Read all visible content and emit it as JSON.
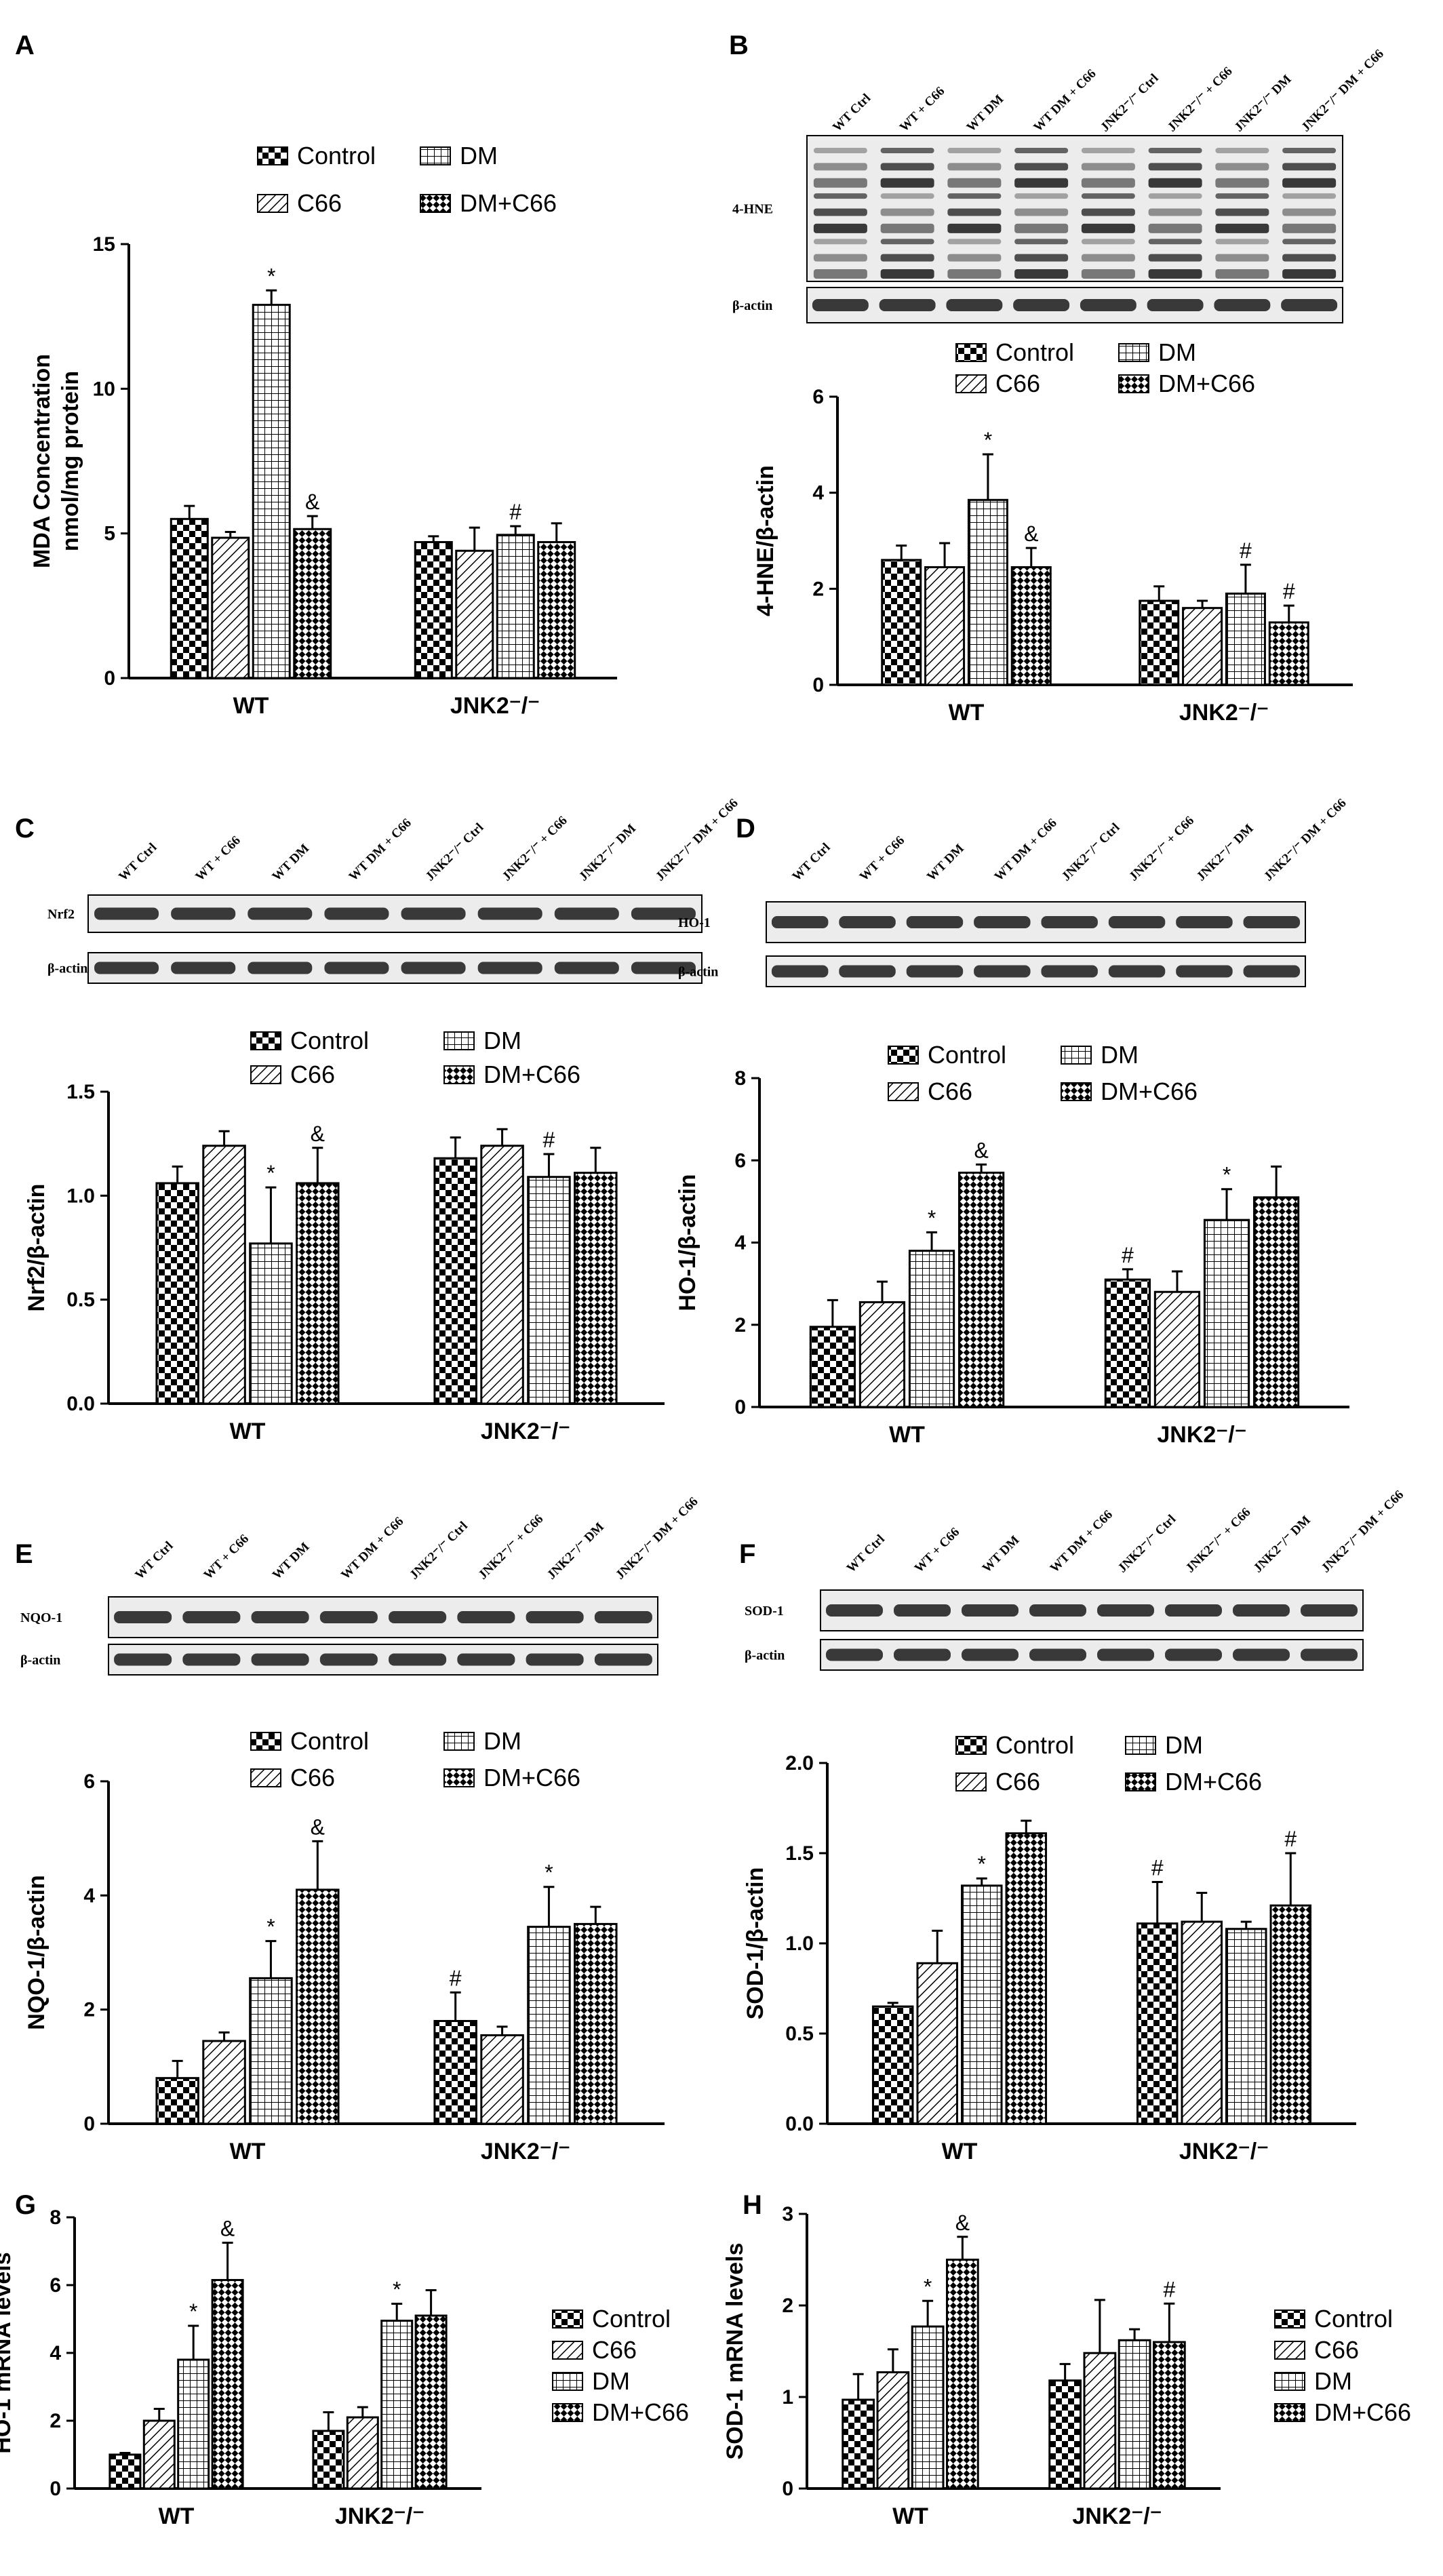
{
  "legend_labels": [
    "Control",
    "C66",
    "DM",
    "DM+C66"
  ],
  "groups": [
    "WT",
    "JNK2⁻/⁻"
  ],
  "lane_labels": [
    "WT Ctrl",
    "WT + C66",
    "WT DM",
    "WT DM + C66",
    "JNK2⁻/⁻ Ctrl",
    "JNK2⁻/⁻ + C66",
    "JNK2⁻/⁻ DM",
    "JNK2⁻/⁻ DM + C66"
  ],
  "colors": {
    "ink": "#000000",
    "bar_fill": "#ffffff",
    "blot_bg": "#ececec",
    "band": "#1a1a1a"
  },
  "patterns": [
    "checker",
    "diagonal",
    "grid",
    "crosshatch"
  ],
  "blots": [
    {
      "panel": "B",
      "rows": [
        "4-HNE",
        "β-actin"
      ]
    },
    {
      "panel": "C",
      "rows": [
        "Nrf2",
        "β-actin"
      ]
    },
    {
      "panel": "D",
      "rows": [
        "HO-1",
        "β-actin"
      ]
    },
    {
      "panel": "E",
      "rows": [
        "NQO-1",
        "β-actin"
      ]
    },
    {
      "panel": "F",
      "rows": [
        "SOD-1",
        "β-actin"
      ]
    }
  ],
  "chart_data": [
    {
      "panel": "A",
      "type": "bar",
      "ylabel": [
        "MDA Concentration",
        "nmol/mg protein"
      ],
      "ylim": [
        0,
        15
      ],
      "yticks": [
        "0",
        "5",
        "10",
        "15"
      ],
      "categories": [
        "WT",
        "JNK2⁻/⁻"
      ],
      "series": [
        {
          "name": "Control",
          "values": [
            5.5,
            4.7
          ],
          "errors": [
            0.45,
            0.2
          ]
        },
        {
          "name": "C66",
          "values": [
            4.85,
            4.4
          ],
          "errors": [
            0.2,
            0.8
          ]
        },
        {
          "name": "DM",
          "values": [
            12.9,
            4.95
          ],
          "errors": [
            0.5,
            0.3
          ]
        },
        {
          "name": "DM+C66",
          "values": [
            5.15,
            4.7
          ],
          "errors": [
            0.45,
            0.65
          ]
        }
      ],
      "marks": [
        [
          "",
          "",
          "*",
          "&"
        ],
        [
          "",
          "",
          "#",
          ""
        ]
      ],
      "legend": "top"
    },
    {
      "panel": "B",
      "type": "bar",
      "ylabel": [
        "4-HNE/β-actin"
      ],
      "ylim": [
        0,
        6
      ],
      "yticks": [
        "0",
        "2",
        "4",
        "6"
      ],
      "categories": [
        "WT",
        "JNK2⁻/⁻"
      ],
      "series": [
        {
          "name": "Control",
          "values": [
            2.6,
            1.75
          ],
          "errors": [
            0.3,
            0.3
          ]
        },
        {
          "name": "C66",
          "values": [
            2.45,
            1.6
          ],
          "errors": [
            0.5,
            0.15
          ]
        },
        {
          "name": "DM",
          "values": [
            3.85,
            1.9
          ],
          "errors": [
            0.95,
            0.6
          ]
        },
        {
          "name": "DM+C66",
          "values": [
            2.45,
            1.3
          ],
          "errors": [
            0.4,
            0.35
          ]
        }
      ],
      "marks": [
        [
          "",
          "",
          "*",
          "&"
        ],
        [
          "",
          "",
          "#",
          "#"
        ]
      ],
      "legend": "top"
    },
    {
      "panel": "C",
      "type": "bar",
      "ylabel": [
        "Nrf2/β-actin"
      ],
      "ylim": [
        0,
        1.5
      ],
      "yticks": [
        "0.0",
        "0.5",
        "1.0",
        "1.5"
      ],
      "categories": [
        "WT",
        "JNK2⁻/⁻"
      ],
      "series": [
        {
          "name": "Control",
          "values": [
            1.06,
            1.18
          ],
          "errors": [
            0.08,
            0.1
          ]
        },
        {
          "name": "C66",
          "values": [
            1.24,
            1.24
          ],
          "errors": [
            0.07,
            0.08
          ]
        },
        {
          "name": "DM",
          "values": [
            0.77,
            1.09
          ],
          "errors": [
            0.27,
            0.11
          ]
        },
        {
          "name": "DM+C66",
          "values": [
            1.06,
            1.11
          ],
          "errors": [
            0.17,
            0.12
          ]
        }
      ],
      "marks": [
        [
          "",
          "",
          "*",
          "&"
        ],
        [
          "",
          "",
          "#",
          ""
        ]
      ],
      "legend": "top"
    },
    {
      "panel": "D",
      "type": "bar",
      "ylabel": [
        "HO-1/β-actin"
      ],
      "ylim": [
        0,
        8
      ],
      "yticks": [
        "0",
        "2",
        "4",
        "6",
        "8"
      ],
      "categories": [
        "WT",
        "JNK2⁻/⁻"
      ],
      "series": [
        {
          "name": "Control",
          "values": [
            1.95,
            3.1
          ],
          "errors": [
            0.65,
            0.25
          ]
        },
        {
          "name": "C66",
          "values": [
            2.55,
            2.8
          ],
          "errors": [
            0.5,
            0.5
          ]
        },
        {
          "name": "DM",
          "values": [
            3.8,
            4.55
          ],
          "errors": [
            0.45,
            0.75
          ]
        },
        {
          "name": "DM+C66",
          "values": [
            5.7,
            5.1
          ],
          "errors": [
            0.2,
            0.75
          ]
        }
      ],
      "marks": [
        [
          "",
          "",
          "*",
          "&"
        ],
        [
          "#",
          "",
          "*",
          ""
        ]
      ],
      "legend": "top"
    },
    {
      "panel": "E",
      "type": "bar",
      "ylabel": [
        "NQO-1/β-actin"
      ],
      "ylim": [
        0,
        6
      ],
      "yticks": [
        "0",
        "2",
        "4",
        "6"
      ],
      "categories": [
        "WT",
        "JNK2⁻/⁻"
      ],
      "series": [
        {
          "name": "Control",
          "values": [
            0.8,
            1.8
          ],
          "errors": [
            0.3,
            0.5
          ]
        },
        {
          "name": "C66",
          "values": [
            1.45,
            1.55
          ],
          "errors": [
            0.15,
            0.15
          ]
        },
        {
          "name": "DM",
          "values": [
            2.55,
            3.45
          ],
          "errors": [
            0.65,
            0.7
          ]
        },
        {
          "name": "DM+C66",
          "values": [
            4.1,
            3.5
          ],
          "errors": [
            0.85,
            0.3
          ]
        }
      ],
      "marks": [
        [
          "",
          "",
          "*",
          "&"
        ],
        [
          "#",
          "",
          "*",
          ""
        ]
      ],
      "legend": "top"
    },
    {
      "panel": "F",
      "type": "bar",
      "ylabel": [
        "SOD-1/β-actin"
      ],
      "ylim": [
        0,
        2
      ],
      "yticks": [
        "0.0",
        "0.5",
        "1.0",
        "1.5",
        "2.0"
      ],
      "categories": [
        "WT",
        "JNK2⁻/⁻"
      ],
      "series": [
        {
          "name": "Control",
          "values": [
            0.65,
            1.11
          ],
          "errors": [
            0.02,
            0.23
          ]
        },
        {
          "name": "C66",
          "values": [
            0.89,
            1.12
          ],
          "errors": [
            0.18,
            0.16
          ]
        },
        {
          "name": "DM",
          "values": [
            1.32,
            1.08
          ],
          "errors": [
            0.04,
            0.04
          ]
        },
        {
          "name": "DM+C66",
          "values": [
            1.61,
            1.21
          ],
          "errors": [
            0.07,
            0.29
          ]
        }
      ],
      "marks": [
        [
          "",
          "",
          "*",
          ""
        ],
        [
          "#",
          "",
          "",
          "#"
        ]
      ],
      "legend": "top"
    },
    {
      "panel": "G",
      "type": "bar",
      "ylabel": [
        "HO-1 mRNA levels"
      ],
      "ylim": [
        0,
        8
      ],
      "yticks": [
        "0",
        "2",
        "4",
        "6",
        "8"
      ],
      "categories": [
        "WT",
        "JNK2⁻/⁻"
      ],
      "series": [
        {
          "name": "Control",
          "values": [
            1.0,
            1.7
          ],
          "errors": [
            0.05,
            0.55
          ]
        },
        {
          "name": "C66",
          "values": [
            2.0,
            2.1
          ],
          "errors": [
            0.35,
            0.3
          ]
        },
        {
          "name": "DM",
          "values": [
            3.8,
            4.95
          ],
          "errors": [
            1.0,
            0.5
          ]
        },
        {
          "name": "DM+C66",
          "values": [
            6.15,
            5.1
          ],
          "errors": [
            1.1,
            0.75
          ]
        }
      ],
      "marks": [
        [
          "",
          "",
          "*",
          "&"
        ],
        [
          "",
          "",
          "*",
          ""
        ]
      ],
      "legend": "right"
    },
    {
      "panel": "H",
      "type": "bar",
      "ylabel": [
        "SOD-1 mRNA levels"
      ],
      "ylim": [
        0,
        3
      ],
      "yticks": [
        "0",
        "1",
        "2",
        "3"
      ],
      "categories": [
        "WT",
        "JNK2⁻/⁻"
      ],
      "series": [
        {
          "name": "Control",
          "values": [
            0.97,
            1.18
          ],
          "errors": [
            0.28,
            0.18
          ]
        },
        {
          "name": "C66",
          "values": [
            1.27,
            1.48
          ],
          "errors": [
            0.25,
            0.58
          ]
        },
        {
          "name": "DM",
          "values": [
            1.77,
            1.62
          ],
          "errors": [
            0.28,
            0.12
          ]
        },
        {
          "name": "DM+C66",
          "values": [
            2.5,
            1.6
          ],
          "errors": [
            0.25,
            0.42
          ]
        }
      ],
      "marks": [
        [
          "",
          "",
          "*",
          "&"
        ],
        [
          "",
          "",
          "",
          "#"
        ]
      ],
      "legend": "right"
    }
  ]
}
